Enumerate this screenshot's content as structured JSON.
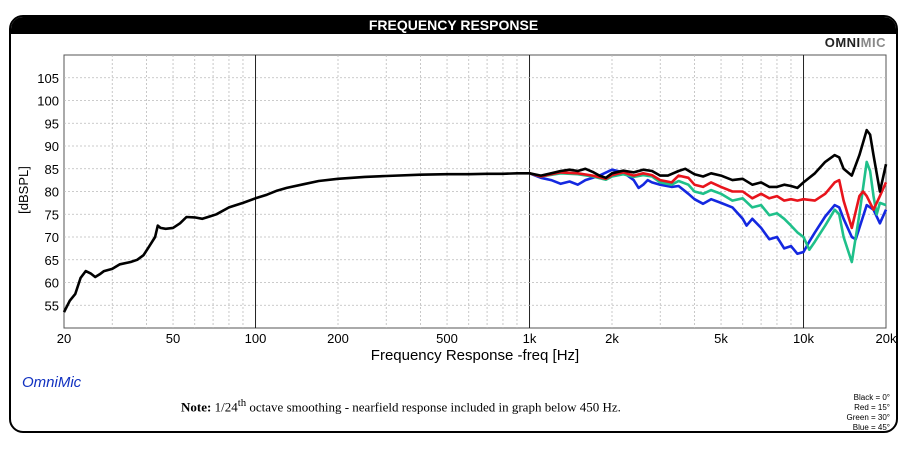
{
  "header": {
    "title": "FREQUENCY RESPONSE",
    "brand_bold": "OMNI",
    "brand_light": "MIC"
  },
  "footer": {
    "software": "OmniMic",
    "note_label": "Note:",
    "note_pre": "1/24",
    "note_sup": "th",
    "note_post": " octave smoothing - nearfield response included in graph below 450 Hz."
  },
  "legend": [
    "Black = 0°",
    "Red = 15°",
    "Green = 30°",
    "Blue = 45°"
  ],
  "colors": {
    "black": "#000000",
    "red": "#e8141c",
    "green": "#1fc08a",
    "blue": "#1428e0"
  },
  "chart_data": {
    "type": "line",
    "title": "FREQUENCY RESPONSE",
    "xlabel": "Frequency Response -freq [Hz]",
    "ylabel": "[dBSPL]",
    "x_scale": "log",
    "xlim": [
      20,
      20000
    ],
    "ylim": [
      50,
      110
    ],
    "x_ticks": [
      20,
      50,
      100,
      200,
      500,
      1000,
      2000,
      5000,
      10000,
      20000
    ],
    "x_tick_labels": [
      "20",
      "50",
      "100",
      "200",
      "500",
      "1k",
      "2k",
      "5k",
      "10k",
      "20k"
    ],
    "y_ticks": [
      55,
      60,
      65,
      70,
      75,
      80,
      85,
      90,
      95,
      100,
      105
    ],
    "grid": true,
    "series": [
      {
        "name": "Black = 0°",
        "color": "#000000",
        "points": [
          [
            20,
            53.5
          ],
          [
            21,
            56
          ],
          [
            22,
            57.5
          ],
          [
            23,
            61
          ],
          [
            24,
            62.5
          ],
          [
            25,
            62
          ],
          [
            26,
            61.2
          ],
          [
            27,
            61.8
          ],
          [
            28,
            62.5
          ],
          [
            30,
            63
          ],
          [
            32,
            64
          ],
          [
            35,
            64.5
          ],
          [
            37,
            65
          ],
          [
            39,
            66
          ],
          [
            41,
            68
          ],
          [
            43,
            70
          ],
          [
            44,
            72.5
          ],
          [
            45,
            72
          ],
          [
            47,
            71.8
          ],
          [
            50,
            72
          ],
          [
            53,
            73
          ],
          [
            56,
            74.4
          ],
          [
            60,
            74.3
          ],
          [
            64,
            74
          ],
          [
            68,
            74.5
          ],
          [
            72,
            75
          ],
          [
            80,
            76.5
          ],
          [
            90,
            77.5
          ],
          [
            100,
            78.5
          ],
          [
            110,
            79.3
          ],
          [
            120,
            80.2
          ],
          [
            130,
            80.8
          ],
          [
            150,
            81.6
          ],
          [
            170,
            82.3
          ],
          [
            200,
            82.8
          ],
          [
            250,
            83.2
          ],
          [
            300,
            83.4
          ],
          [
            400,
            83.7
          ],
          [
            500,
            83.8
          ],
          [
            600,
            83.8
          ],
          [
            700,
            83.9
          ],
          [
            800,
            83.9
          ],
          [
            900,
            84
          ],
          [
            1000,
            84
          ],
          [
            1100,
            83.5
          ],
          [
            1200,
            84
          ],
          [
            1300,
            84.5
          ],
          [
            1400,
            84.8
          ],
          [
            1500,
            84.5
          ],
          [
            1600,
            85
          ],
          [
            1700,
            84.3
          ],
          [
            1800,
            83.5
          ],
          [
            1900,
            83
          ],
          [
            2000,
            84
          ],
          [
            2200,
            84.6
          ],
          [
            2400,
            84.2
          ],
          [
            2600,
            84.8
          ],
          [
            2800,
            84.5
          ],
          [
            3000,
            83.5
          ],
          [
            3200,
            83.5
          ],
          [
            3500,
            84.5
          ],
          [
            3700,
            85
          ],
          [
            4000,
            83.8
          ],
          [
            4300,
            83.3
          ],
          [
            4600,
            84
          ],
          [
            5000,
            83.5
          ],
          [
            5500,
            82.5
          ],
          [
            6000,
            82.8
          ],
          [
            6500,
            81.5
          ],
          [
            7000,
            82
          ],
          [
            7500,
            81
          ],
          [
            8000,
            81
          ],
          [
            8500,
            81.5
          ],
          [
            9000,
            81.2
          ],
          [
            9500,
            80.8
          ],
          [
            10000,
            82
          ],
          [
            11000,
            84
          ],
          [
            12000,
            86.5
          ],
          [
            13000,
            88
          ],
          [
            13500,
            87.5
          ],
          [
            14000,
            85
          ],
          [
            15000,
            83.5
          ],
          [
            16000,
            88
          ],
          [
            17000,
            93.5
          ],
          [
            17500,
            92.5
          ],
          [
            18000,
            88
          ],
          [
            19000,
            80
          ],
          [
            19500,
            83
          ],
          [
            20000,
            86
          ]
        ]
      },
      {
        "name": "Red = 15°",
        "color": "#e8141c",
        "points": [
          [
            1000,
            84
          ],
          [
            1100,
            83.3
          ],
          [
            1200,
            83.8
          ],
          [
            1300,
            84.2
          ],
          [
            1500,
            84
          ],
          [
            1700,
            83.5
          ],
          [
            1900,
            82.8
          ],
          [
            2000,
            83.6
          ],
          [
            2200,
            84.2
          ],
          [
            2400,
            83.5
          ],
          [
            2600,
            84
          ],
          [
            2800,
            83.6
          ],
          [
            3000,
            82.5
          ],
          [
            3300,
            82
          ],
          [
            3500,
            83.5
          ],
          [
            3800,
            83
          ],
          [
            4000,
            81.5
          ],
          [
            4300,
            81
          ],
          [
            4600,
            82
          ],
          [
            5000,
            81
          ],
          [
            5500,
            80
          ],
          [
            6000,
            80
          ],
          [
            6500,
            78.5
          ],
          [
            7000,
            79.5
          ],
          [
            7500,
            78.5
          ],
          [
            8000,
            79
          ],
          [
            8500,
            78
          ],
          [
            9000,
            78.3
          ],
          [
            9500,
            78
          ],
          [
            10000,
            78.3
          ],
          [
            11000,
            78
          ],
          [
            12000,
            79.5
          ],
          [
            13000,
            82
          ],
          [
            13500,
            82.5
          ],
          [
            14000,
            78
          ],
          [
            15000,
            72
          ],
          [
            16000,
            79
          ],
          [
            16500,
            80
          ],
          [
            17000,
            79
          ],
          [
            18000,
            76
          ],
          [
            19000,
            79
          ],
          [
            20000,
            82
          ]
        ]
      },
      {
        "name": "Green = 30°",
        "color": "#1fc08a",
        "points": [
          [
            1000,
            84
          ],
          [
            1100,
            83.3
          ],
          [
            1300,
            84
          ],
          [
            1500,
            83.8
          ],
          [
            1700,
            83.3
          ],
          [
            1900,
            82.6
          ],
          [
            2000,
            83.3
          ],
          [
            2200,
            83.8
          ],
          [
            2400,
            83.2
          ],
          [
            2600,
            83.6
          ],
          [
            2800,
            83.3
          ],
          [
            3000,
            82
          ],
          [
            3300,
            81.5
          ],
          [
            3500,
            82.3
          ],
          [
            3800,
            81.5
          ],
          [
            4000,
            80
          ],
          [
            4300,
            79.5
          ],
          [
            4600,
            80.3
          ],
          [
            5000,
            79.5
          ],
          [
            5500,
            78
          ],
          [
            6000,
            78.5
          ],
          [
            6500,
            76.5
          ],
          [
            7000,
            77
          ],
          [
            7500,
            74.8
          ],
          [
            8000,
            75.2
          ],
          [
            8500,
            74
          ],
          [
            9000,
            72.5
          ],
          [
            9500,
            71
          ],
          [
            10000,
            70
          ],
          [
            10500,
            67.2
          ],
          [
            11000,
            69
          ],
          [
            12000,
            72.5
          ],
          [
            13000,
            76
          ],
          [
            13500,
            75
          ],
          [
            14000,
            70
          ],
          [
            15000,
            64.5
          ],
          [
            16000,
            75
          ],
          [
            17000,
            86.5
          ],
          [
            17500,
            84.5
          ],
          [
            18000,
            79
          ],
          [
            18500,
            75
          ],
          [
            19000,
            77.5
          ],
          [
            20000,
            77
          ]
        ]
      },
      {
        "name": "Blue = 45°",
        "color": "#1428e0",
        "points": [
          [
            1000,
            84
          ],
          [
            1100,
            83
          ],
          [
            1200,
            82.5
          ],
          [
            1300,
            81.7
          ],
          [
            1400,
            82.2
          ],
          [
            1500,
            81.5
          ],
          [
            1600,
            82.5
          ],
          [
            1800,
            83.5
          ],
          [
            2000,
            84.8
          ],
          [
            2200,
            84.2
          ],
          [
            2400,
            82.5
          ],
          [
            2500,
            80.8
          ],
          [
            2600,
            81.5
          ],
          [
            2700,
            82.5
          ],
          [
            2800,
            82
          ],
          [
            3000,
            81.5
          ],
          [
            3300,
            81
          ],
          [
            3500,
            81.2
          ],
          [
            3800,
            79.5
          ],
          [
            4000,
            78.3
          ],
          [
            4300,
            77.3
          ],
          [
            4600,
            78.3
          ],
          [
            5000,
            77.5
          ],
          [
            5500,
            76.5
          ],
          [
            6000,
            74
          ],
          [
            6200,
            72.5
          ],
          [
            6500,
            74
          ],
          [
            7000,
            72
          ],
          [
            7500,
            69.5
          ],
          [
            8000,
            70
          ],
          [
            8500,
            67.5
          ],
          [
            9000,
            68
          ],
          [
            9500,
            66.3
          ],
          [
            10000,
            66.7
          ],
          [
            10500,
            69
          ],
          [
            11000,
            71
          ],
          [
            12000,
            74.5
          ],
          [
            13000,
            77
          ],
          [
            13500,
            76.5
          ],
          [
            14000,
            74
          ],
          [
            15000,
            70
          ],
          [
            15500,
            69.5
          ],
          [
            16000,
            72
          ],
          [
            17000,
            77
          ],
          [
            18000,
            76
          ],
          [
            19000,
            73
          ],
          [
            20000,
            76
          ]
        ]
      }
    ]
  }
}
